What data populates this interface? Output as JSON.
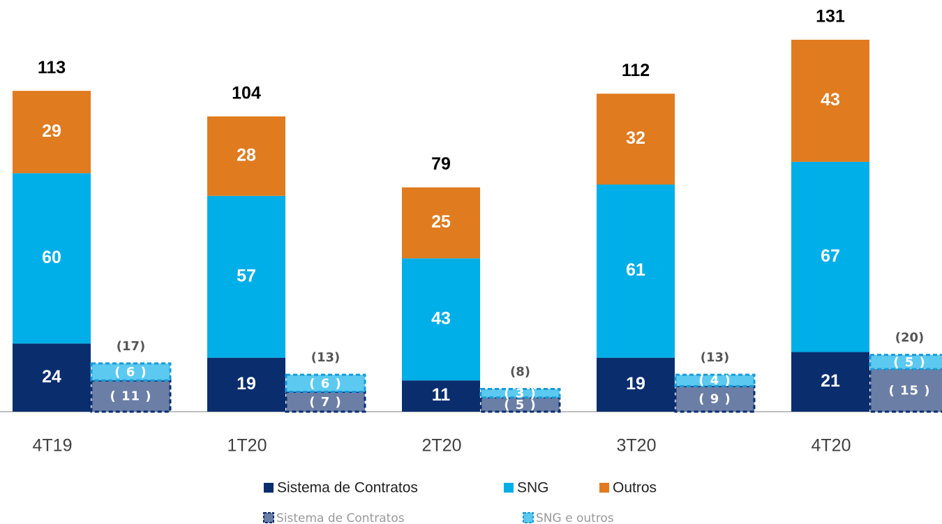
{
  "chart_data": {
    "type": "bar",
    "stacked": true,
    "categories": [
      "4T19",
      "1T20",
      "2T20",
      "3T20",
      "4T20"
    ],
    "series": [
      {
        "name": "Sistema de Contratos",
        "color": "#0a2d6e",
        "values": [
          24,
          19,
          11,
          19,
          21
        ]
      },
      {
        "name": "SNG",
        "color": "#00aee8",
        "values": [
          60,
          57,
          43,
          61,
          67
        ]
      },
      {
        "name": "Outros",
        "color": "#e07b1f",
        "values": [
          29,
          28,
          25,
          32,
          43
        ]
      }
    ],
    "totals": [
      113,
      104,
      79,
      112,
      131
    ],
    "adjustments": [
      {
        "name": "Sistema de Contratos",
        "color": "#6b7ea6",
        "border": "#0a2d6e",
        "values": [
          11,
          7,
          5,
          9,
          15
        ],
        "value_labels": [
          "( 11 )",
          "( 7 )",
          "( 5 )",
          "( 9 )",
          "( 15 )"
        ]
      },
      {
        "name": "SNG e outros",
        "color": "#5ccaf0",
        "border": "#1a9ad6",
        "values": [
          6,
          6,
          3,
          4,
          5
        ],
        "value_labels": [
          "( 6 )",
          "( 6 )",
          "( 3 )",
          "( 4 )",
          "( 5 )"
        ]
      }
    ],
    "adjustment_totals": {
      "values": [
        17,
        13,
        8,
        13,
        20
      ],
      "value_labels": [
        "(17)",
        "(13)",
        "(8)",
        "(13)",
        "(20)"
      ]
    },
    "ylim": [
      0,
      145
    ]
  }
}
